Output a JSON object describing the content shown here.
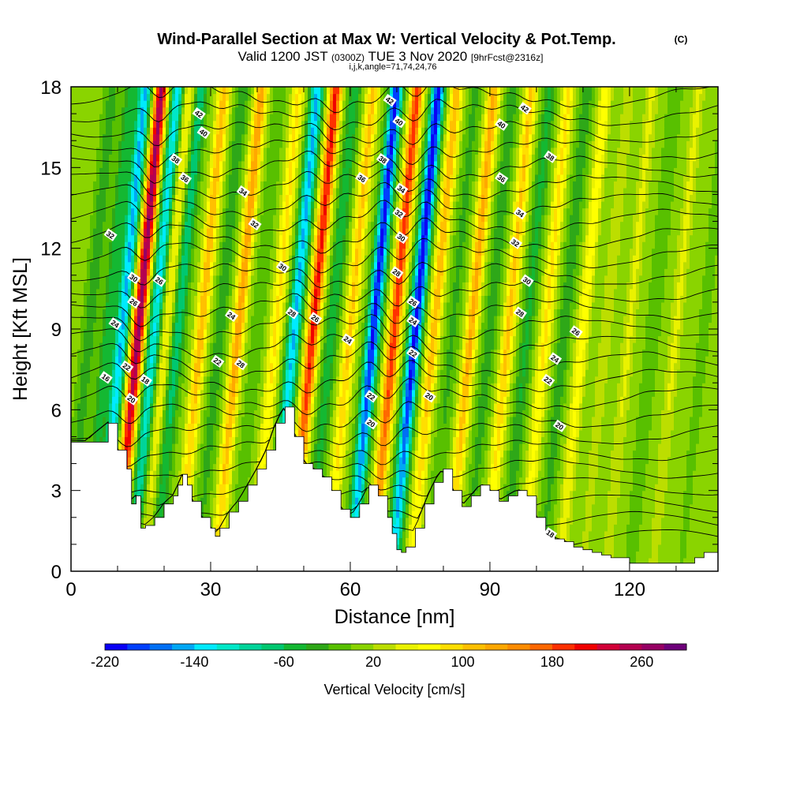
{
  "header": {
    "title": "Wind-Parallel Section at Max W: Vertical Velocity & Pot.Temp.",
    "copyright": "(C)",
    "valid_prefix": "Valid 1200 JST",
    "valid_utc": "(0300Z)",
    "valid_date": "TUE 3 Nov 2020",
    "forecast": "[9hrFcst@2316z]",
    "indices": "i,j,k,angle=71,74,24,76"
  },
  "chart_data": {
    "type": "heatmap",
    "xlabel": "Distance [nm]",
    "ylabel": "Height [Kft MSL]",
    "xlim": [
      0,
      139
    ],
    "ylim": [
      0,
      18
    ],
    "xticks": [
      "0",
      "30",
      "60",
      "90",
      "120"
    ],
    "yticks": [
      "0",
      "3",
      "6",
      "9",
      "12",
      "15",
      "18"
    ],
    "grid": false,
    "colorbar": {
      "label": "Vertical Velocity [cm/s]",
      "min": -220,
      "max": 280,
      "step": 20,
      "tick_labels": [
        "-220",
        "-140",
        "-60",
        "20",
        "100",
        "180",
        "260"
      ],
      "colors": [
        "#0a00f5",
        "#0040ff",
        "#0070f5",
        "#00a8f5",
        "#00eaff",
        "#00e8c8",
        "#00d49a",
        "#00c870",
        "#14b832",
        "#2ea818",
        "#58c000",
        "#8ad400",
        "#bcde00",
        "#eaf200",
        "#ffff00",
        "#ffde00",
        "#ffc000",
        "#ffa800",
        "#ff8c00",
        "#ff6800",
        "#ff3000",
        "#f00000",
        "#d20038",
        "#b40050",
        "#960064",
        "#6e007a"
      ]
    },
    "w_field": {
      "units": "cm/s",
      "background": 5,
      "columns": [
        {
          "x": 4,
          "w": -40
        },
        {
          "x": 8,
          "w": -60
        },
        {
          "x": 11,
          "w": -150
        },
        {
          "x": 14.5,
          "w": 260
        },
        {
          "x": 18,
          "w": -130
        },
        {
          "x": 20.5,
          "w": 60
        },
        {
          "x": 23,
          "w": -80
        },
        {
          "x": 28,
          "w": 110
        },
        {
          "x": 32,
          "w": -40
        },
        {
          "x": 36,
          "w": 130
        },
        {
          "x": 40,
          "w": -20
        },
        {
          "x": 44,
          "w": 80
        },
        {
          "x": 48,
          "w": -150
        },
        {
          "x": 52,
          "w": 200
        },
        {
          "x": 56,
          "w": -60
        },
        {
          "x": 60,
          "w": 100
        },
        {
          "x": 65,
          "w": -210
        },
        {
          "x": 69.5,
          "w": 190
        },
        {
          "x": 74,
          "w": -220
        },
        {
          "x": 78,
          "w": 110
        },
        {
          "x": 82,
          "w": -30
        },
        {
          "x": 86,
          "w": 120
        },
        {
          "x": 90,
          "w": -40
        },
        {
          "x": 94,
          "w": 100
        },
        {
          "x": 98,
          "w": -50
        },
        {
          "x": 102,
          "w": 80
        },
        {
          "x": 106,
          "w": -40
        },
        {
          "x": 110,
          "w": 70
        },
        {
          "x": 115,
          "w": 30
        },
        {
          "x": 120,
          "w": 40
        },
        {
          "x": 125,
          "w": -20
        },
        {
          "x": 130,
          "w": 40
        },
        {
          "x": 136,
          "w": -10
        }
      ]
    },
    "terrain_kft": {
      "x": [
        0,
        3,
        8,
        10,
        12,
        13,
        14,
        15,
        16,
        18,
        20,
        22,
        23,
        24,
        25,
        26,
        28,
        30,
        31,
        32,
        34,
        36,
        38,
        40,
        42,
        44,
        46,
        48,
        50,
        52,
        54,
        56,
        58,
        60,
        62,
        64,
        66,
        68,
        69,
        70,
        71,
        72,
        74,
        76,
        78,
        80,
        82,
        84,
        86,
        88,
        90,
        92,
        94,
        96,
        98,
        100,
        102,
        104,
        106,
        108,
        110,
        112,
        114,
        116,
        120,
        125,
        130,
        134,
        136,
        138,
        139
      ],
      "y": [
        4.8,
        4.8,
        5.5,
        4.5,
        3.8,
        2.5,
        2.8,
        1.6,
        1.7,
        2.0,
        2.5,
        2.8,
        3.2,
        3.6,
        3.2,
        2.6,
        2.0,
        1.6,
        1.3,
        1.6,
        2.2,
        2.6,
        3.2,
        3.8,
        4.5,
        5.5,
        6.1,
        5.0,
        4.0,
        3.8,
        3.5,
        3.0,
        2.3,
        2.0,
        2.5,
        3.2,
        2.8,
        2.0,
        1.4,
        0.8,
        0.7,
        0.9,
        1.6,
        2.5,
        3.3,
        3.8,
        3.0,
        2.4,
        2.8,
        3.2,
        3.0,
        2.6,
        2.8,
        3.0,
        2.8,
        2.0,
        1.4,
        1.2,
        1.1,
        0.9,
        0.8,
        0.7,
        0.6,
        0.5,
        0.3,
        0.3,
        0.3,
        0.5,
        0.7,
        0.7,
        0.8
      ]
    },
    "theta_contours": {
      "units": "deg C (labels as shown)",
      "levels": [
        16,
        18,
        20,
        22,
        24,
        26,
        28,
        30,
        32,
        34,
        36,
        38,
        40,
        42
      ],
      "labels": [
        {
          "text": "16",
          "x": 7.5,
          "y": 7.2
        },
        {
          "text": "18",
          "x": 16,
          "y": 7.1
        },
        {
          "text": "20",
          "x": 13,
          "y": 6.4
        },
        {
          "text": "22",
          "x": 12,
          "y": 7.6
        },
        {
          "text": "24",
          "x": 9.5,
          "y": 9.2
        },
        {
          "text": "26",
          "x": 13.5,
          "y": 10.0
        },
        {
          "text": "30",
          "x": 13.5,
          "y": 10.9
        },
        {
          "text": "26",
          "x": 19,
          "y": 10.8
        },
        {
          "text": "32",
          "x": 8.5,
          "y": 12.5
        },
        {
          "text": "36",
          "x": 24.5,
          "y": 14.6
        },
        {
          "text": "38",
          "x": 22.5,
          "y": 15.3
        },
        {
          "text": "40",
          "x": 28.5,
          "y": 16.3
        },
        {
          "text": "42",
          "x": 27.5,
          "y": 17.0
        },
        {
          "text": "34",
          "x": 37,
          "y": 14.1
        },
        {
          "text": "32",
          "x": 39.5,
          "y": 12.9
        },
        {
          "text": "30",
          "x": 45.5,
          "y": 11.3
        },
        {
          "text": "24",
          "x": 34.5,
          "y": 9.5
        },
        {
          "text": "22",
          "x": 31.5,
          "y": 7.8
        },
        {
          "text": "28",
          "x": 36.5,
          "y": 7.7
        },
        {
          "text": "28",
          "x": 47.5,
          "y": 9.6
        },
        {
          "text": "26",
          "x": 52.5,
          "y": 9.4
        },
        {
          "text": "36",
          "x": 62.5,
          "y": 14.6
        },
        {
          "text": "24",
          "x": 59.5,
          "y": 8.6
        },
        {
          "text": "42",
          "x": 68.5,
          "y": 17.5
        },
        {
          "text": "40",
          "x": 70.5,
          "y": 16.7
        },
        {
          "text": "38",
          "x": 67,
          "y": 15.3
        },
        {
          "text": "34",
          "x": 71,
          "y": 14.2
        },
        {
          "text": "32",
          "x": 70.5,
          "y": 13.3
        },
        {
          "text": "30",
          "x": 71,
          "y": 12.4
        },
        {
          "text": "28",
          "x": 70,
          "y": 11.1
        },
        {
          "text": "26",
          "x": 73.5,
          "y": 10.0
        },
        {
          "text": "24",
          "x": 73.5,
          "y": 9.3
        },
        {
          "text": "22",
          "x": 73.5,
          "y": 8.1
        },
        {
          "text": "20",
          "x": 77,
          "y": 6.5
        },
        {
          "text": "22",
          "x": 64.5,
          "y": 6.5
        },
        {
          "text": "20",
          "x": 64.5,
          "y": 5.5
        },
        {
          "text": "40",
          "x": 92.5,
          "y": 16.6
        },
        {
          "text": "42",
          "x": 97.5,
          "y": 17.2
        },
        {
          "text": "38",
          "x": 103,
          "y": 15.4
        },
        {
          "text": "36",
          "x": 92.5,
          "y": 14.6
        },
        {
          "text": "34",
          "x": 96.5,
          "y": 13.3
        },
        {
          "text": "32",
          "x": 95.5,
          "y": 12.2
        },
        {
          "text": "30",
          "x": 98,
          "y": 10.8
        },
        {
          "text": "28",
          "x": 96.5,
          "y": 9.6
        },
        {
          "text": "26",
          "x": 108.5,
          "y": 8.9
        },
        {
          "text": "24",
          "x": 104,
          "y": 7.9
        },
        {
          "text": "22",
          "x": 102.5,
          "y": 7.1
        },
        {
          "text": "20",
          "x": 105,
          "y": 5.4
        },
        {
          "text": "18",
          "x": 103,
          "y": 1.4
        }
      ]
    }
  }
}
